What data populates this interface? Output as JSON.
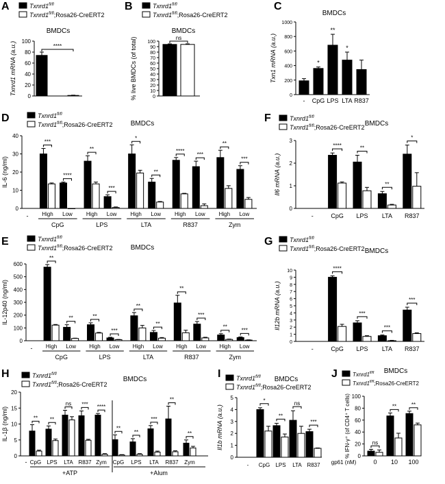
{
  "chart_data": [
    {
      "id": "A",
      "type": "bar",
      "title": "BMDCs",
      "ylabel": "Txnrd1 mRNA (a.u.)",
      "ylim": [
        0,
        100
      ],
      "yticks": [
        0,
        20,
        40,
        60,
        80,
        100
      ],
      "legend": [
        "Txnrd1",
        "Txnrd1;Rosa26-CreERT2"
      ],
      "categories": [
        ""
      ],
      "series": [
        {
          "name": "Txnrd1 fl/fl",
          "values": [
            74
          ],
          "err": [
            6
          ]
        },
        {
          "name": "Txnrd1 fl/fl;Rosa26-CreERT2",
          "values": [
            1
          ],
          "err": [
            0.5
          ]
        }
      ],
      "sig": [
        {
          "text": "****"
        }
      ]
    },
    {
      "id": "B",
      "type": "bar",
      "title": "BMDCs",
      "ylabel": "% live BMDCs (of total)",
      "ylim": [
        0,
        100
      ],
      "yticks": [
        0,
        10,
        20,
        30,
        40,
        50,
        60,
        70,
        80,
        90,
        100
      ],
      "legend": [
        "Txnrd1",
        "Txnrd1;Rosa26-CreERT2"
      ],
      "categories": [
        ""
      ],
      "series": [
        {
          "name": "Txnrd1 fl/fl",
          "values": [
            94
          ],
          "err": [
            1
          ]
        },
        {
          "name": "Txnrd1 fl/fl;Rosa26-CreERT2",
          "values": [
            94
          ],
          "err": [
            1
          ]
        }
      ],
      "sig": [
        {
          "text": "ns"
        }
      ]
    },
    {
      "id": "C",
      "type": "bar",
      "title": "BMDCs",
      "ylabel": "Txn1 mRNA (a.u.)",
      "ylim": [
        0,
        1000
      ],
      "yticks": [
        0,
        200,
        400,
        600,
        800,
        1000
      ],
      "categories": [
        "-",
        "CpG",
        "LPS",
        "LTA",
        "R837"
      ],
      "series": [
        {
          "name": "Txnrd1 fl/fl",
          "values": [
            190,
            360,
            680,
            475,
            345
          ],
          "err": [
            30,
            20,
            150,
            110,
            130
          ]
        }
      ],
      "sig_single": [
        "",
        "*",
        "**",
        "*",
        ""
      ]
    },
    {
      "id": "D",
      "type": "bar",
      "title": "BMDCs",
      "ylabel": "IL-6 (ng/ml)",
      "ylim": [
        0,
        40
      ],
      "yticks": [
        0,
        10,
        20,
        30,
        40
      ],
      "legend": [
        "Txnrd1",
        "Txnrd1;Rosa26-CreERT2"
      ],
      "groups": [
        "CpG",
        "LPS",
        "LTA",
        "R837",
        "Zym"
      ],
      "sublabels": [
        "High",
        "Low"
      ],
      "series": [
        {
          "name": "Txnrd1 fl/fl",
          "values": [
            30,
            14,
            26,
            6.5,
            30,
            14.5,
            26.5,
            23,
            28,
            21.5
          ],
          "err": [
            3,
            0.5,
            3,
            1,
            5,
            2,
            1.5,
            3,
            4,
            2
          ]
        },
        {
          "name": "Txnrd1 fl/fl;Rosa26-CreERT2",
          "values": [
            13.5,
            0,
            13.5,
            0.5,
            19.5,
            3.5,
            8,
            1.5,
            11,
            5
          ],
          "err": [
            0.5,
            0,
            1,
            0.3,
            1.5,
            0.3,
            0.3,
            1,
            1.5,
            1
          ]
        }
      ],
      "sig": [
        "***",
        "****",
        "**",
        "***",
        "*",
        "**",
        "****",
        "***",
        "**",
        "***"
      ]
    },
    {
      "id": "E",
      "type": "bar",
      "title": "BMDCs",
      "ylabel": "IL-12p40 (ng/ml)",
      "ylim": [
        0,
        600
      ],
      "yticks": [
        0,
        100,
        200,
        300,
        400,
        500,
        600
      ],
      "legend": [
        "Txnrd1",
        "Txnrd1;Rosa26-CreERT2"
      ],
      "groups": [
        "CpG",
        "LPS",
        "LTA",
        "R837",
        "Zym"
      ],
      "sublabels": [
        "High",
        "Low"
      ],
      "series": [
        {
          "name": "Txnrd1 fl/fl",
          "values": [
            575,
            105,
            125,
            22,
            195,
            65,
            295,
            130,
            45,
            25
          ],
          "err": [
            20,
            20,
            15,
            5,
            25,
            15,
            60,
            20,
            10,
            5
          ]
        },
        {
          "name": "Txnrd1 fl/fl;Rosa26-CreERT2",
          "values": [
            122,
            18,
            60,
            8,
            100,
            20,
            62,
            22,
            10,
            5
          ],
          "err": [
            5,
            2,
            5,
            2,
            20,
            5,
            20,
            5,
            3,
            2
          ]
        }
      ],
      "sig": [
        "**",
        "**",
        "**",
        "***",
        "**",
        "**",
        "**",
        "***",
        "**",
        "***"
      ]
    },
    {
      "id": "F",
      "type": "bar",
      "title": "BMDCs",
      "ylabel": "Il6 mRNA (a.u.)",
      "ylim": [
        0,
        3
      ],
      "yticks": [
        0,
        1,
        2,
        3
      ],
      "legend": [
        "Txnrd1",
        "Txnrd1;Rosa26-CreERT2"
      ],
      "categories": [
        "-",
        "CpG",
        "LPS",
        "LTA",
        "R837"
      ],
      "series": [
        {
          "name": "Txnrd1 fl/fl",
          "values": [
            0,
            2.35,
            2.05,
            0.65,
            2.4
          ],
          "err": [
            0,
            0.1,
            0.3,
            0.1,
            0.4
          ]
        },
        {
          "name": "Txnrd1 fl/fl;Rosa26-CreERT2",
          "values": [
            0,
            1.12,
            0.78,
            0.15,
            0.98
          ],
          "err": [
            0,
            0.05,
            0.15,
            0.03,
            0.6
          ]
        }
      ],
      "sig": [
        "",
        "****",
        "**",
        "**",
        "*"
      ]
    },
    {
      "id": "G",
      "type": "bar",
      "title": "BMDCs",
      "ylabel": "Il12b mRNA (a.u.)",
      "ylim": [
        0,
        10
      ],
      "yticks": [
        0,
        1,
        2,
        3,
        4,
        5,
        6,
        7,
        8,
        9,
        10
      ],
      "legend": [
        "Txnrd1",
        "Txnrd1;Rosa26-CreERT2"
      ],
      "categories": [
        "-",
        "CpG",
        "LPS",
        "LTA",
        "R837"
      ],
      "series": [
        {
          "name": "Txnrd1 fl/fl",
          "values": [
            0,
            9.0,
            2.6,
            0.8,
            4.4
          ],
          "err": [
            0,
            0.2,
            0.3,
            0.1,
            0.4
          ]
        },
        {
          "name": "Txnrd1 fl/fl;Rosa26-CreERT2",
          "values": [
            0,
            2.1,
            0.7,
            0.1,
            1.1
          ],
          "err": [
            0,
            0.3,
            0.1,
            0.05,
            0.1
          ]
        }
      ],
      "sig": [
        "",
        "****",
        "***",
        "***",
        "***"
      ]
    },
    {
      "id": "H",
      "type": "bar",
      "title": "BMDCs",
      "ylabel": "IL-1β (ng/ml)",
      "ylim": [
        0,
        20
      ],
      "yticks": [
        0,
        5,
        10,
        15,
        20
      ],
      "legend": [
        "Txnrd1",
        "Txnrd1;Rosa26-CreERT2"
      ],
      "categories": [
        "-",
        "CpG",
        "LPS",
        "LTA",
        "R837",
        "Zym",
        "CpG",
        "LPS",
        "LTA",
        "R837",
        "Zym"
      ],
      "group_labels": [
        "+ATP",
        "+Alum"
      ],
      "series": [
        {
          "name": "Txnrd1 fl/fl",
          "values": [
            0,
            7.8,
            8.4,
            12.8,
            12.6,
            12.8,
            5.1,
            4.4,
            8.5,
            11.6,
            4
          ],
          "err": [
            0,
            2,
            1,
            1.5,
            1.5,
            0.5,
            1.5,
            1,
            1,
            4,
            1
          ]
        },
        {
          "name": "Txnrd1 fl/fl;Rosa26-CreERT2",
          "values": [
            0,
            1.5,
            4.8,
            11.3,
            4.9,
            0.5,
            0.3,
            0.5,
            1.2,
            1.3,
            2.5
          ],
          "err": [
            0,
            0.3,
            0.5,
            1,
            0.3,
            0.2,
            0.1,
            0.2,
            0.3,
            0.3,
            0.5
          ]
        }
      ],
      "sig": [
        "",
        "**",
        "**",
        "ns",
        "***",
        "****",
        "**",
        "**",
        "***",
        "**",
        "**"
      ]
    },
    {
      "id": "I",
      "type": "bar",
      "title": "BMDCs",
      "ylabel": "Il1b mRNA (a.u.)",
      "ylim": [
        0,
        5
      ],
      "yticks": [
        0,
        1,
        2,
        3,
        4,
        5
      ],
      "legend": [
        "Txnrd1",
        "Txnrd1;Rosa26-CreERT2"
      ],
      "categories": [
        "-",
        "CpG",
        "LPS",
        "LTA",
        "R837"
      ],
      "series": [
        {
          "name": "Txnrd1 fl/fl",
          "values": [
            0,
            4.0,
            2.65,
            3.1,
            2.15
          ],
          "err": [
            0,
            0.15,
            0.2,
            0.8,
            0.2
          ]
        },
        {
          "name": "Txnrd1 fl/fl;Rosa26-CreERT2",
          "values": [
            0,
            2.2,
            1.7,
            2.0,
            0.75
          ],
          "err": [
            0,
            0.4,
            0.25,
            0.6,
            0.03
          ]
        }
      ],
      "sig": [
        "",
        "*",
        "**",
        "ns",
        "***"
      ]
    },
    {
      "id": "J",
      "type": "bar",
      "title": "BMDCs",
      "ylabel": "% IFN-γ⁺ (of CD4⁺ T cells)",
      "ylim": [
        0,
        100
      ],
      "yticks": [
        0,
        20,
        40,
        60,
        80,
        100
      ],
      "legend": [
        "Txnrd1",
        "Txnrd1;Rosa26-CreERT2"
      ],
      "categories": [
        "0",
        "10",
        "100"
      ],
      "xprefix": "gp61 (nM)",
      "series": [
        {
          "name": "Txnrd1 fl/fl",
          "values": [
            8,
            67,
            71
          ],
          "err": [
            3,
            5,
            4
          ]
        },
        {
          "name": "Txnrd1 fl/fl;Rosa26-CreERT2",
          "values": [
            6,
            30,
            52
          ],
          "err": [
            4,
            8,
            3
          ]
        }
      ],
      "sig": [
        "ns",
        "**",
        "**"
      ]
    }
  ],
  "labels": {
    "gene_wt": "Txnrd1",
    "sup": "fl/fl",
    "suffix": ";Rosa26-CreERT2",
    "panel_letters": [
      "A",
      "B",
      "C",
      "D",
      "E",
      "F",
      "G",
      "H",
      "I",
      "J"
    ]
  }
}
